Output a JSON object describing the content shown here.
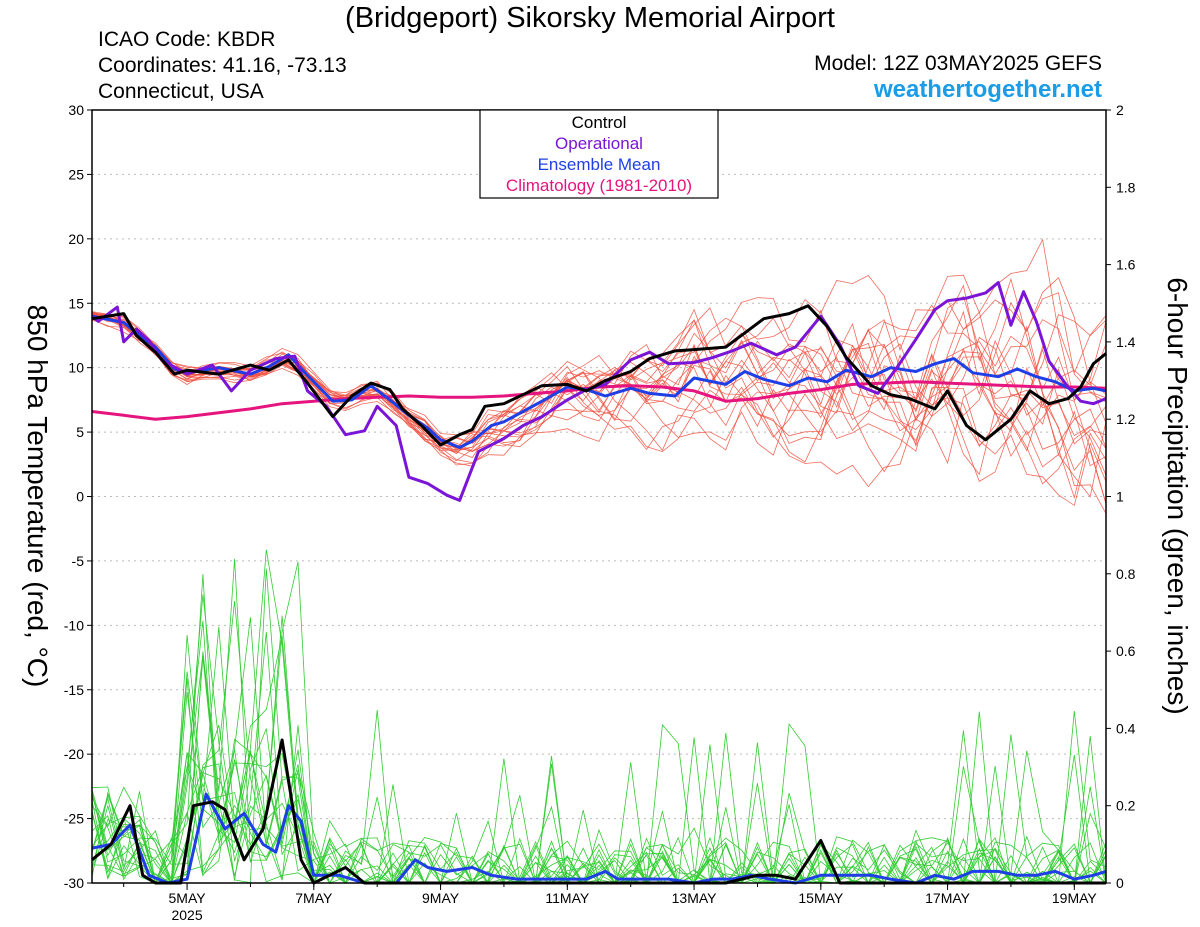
{
  "header": {
    "title": "(Bridgeport) Sikorsky Memorial Airport",
    "icao": "ICAO Code: KBDR",
    "coords": "Coordinates: 41.16, -73.13",
    "location": "Connecticut, USA",
    "model": "Model: 12Z 03MAY2025 GEFS",
    "site": "weathertogether.net"
  },
  "colors": {
    "control": "#000000",
    "operational": "#7a14d6",
    "ensemble_mean": "#1f3fe6",
    "climatology": "#e6147e",
    "temp_members": "#f05040",
    "precip_members": "#33cc33",
    "site": "#1a9ce6"
  },
  "chart_data": {
    "type": "line",
    "ylabel_left": "850 hPa Temperature (red, °C)",
    "ylabel_right": "6-hour Precipitation (green, inches)",
    "ylim_left": [
      -30,
      30
    ],
    "ylim_right": [
      0,
      2
    ],
    "yticks_left": [
      "30",
      "25",
      "20",
      "15",
      "10",
      "5",
      "0",
      "-5",
      "-10",
      "-15",
      "-20",
      "-25",
      "-30"
    ],
    "yticks_right": [
      "2",
      "1.8",
      "1.6",
      "1.4",
      "1.2",
      "1",
      "0.8",
      "0.6",
      "0.4",
      "0.2",
      "0"
    ],
    "x_range_days": [
      3.5,
      19.5
    ],
    "x_ticks": [
      {
        "day": 5,
        "label": "5MAY",
        "sub": "2025"
      },
      {
        "day": 7,
        "label": "7MAY"
      },
      {
        "day": 9,
        "label": "9MAY"
      },
      {
        "day": 11,
        "label": "11MAY"
      },
      {
        "day": 13,
        "label": "13MAY"
      },
      {
        "day": 15,
        "label": "15MAY"
      },
      {
        "day": 17,
        "label": "17MAY"
      },
      {
        "day": 19,
        "label": "19MAY"
      }
    ],
    "legend": {
      "placement": "top-center",
      "entries": [
        "Control",
        "Operational",
        "Ensemble Mean",
        "Climatology (1981-2010)"
      ]
    },
    "grid": true,
    "temperature": {
      "control": [
        [
          3.5,
          13.8
        ],
        [
          4.0,
          14.2
        ],
        [
          4.2,
          12.5
        ],
        [
          4.5,
          11.2
        ],
        [
          4.8,
          9.5
        ],
        [
          5.0,
          9.8
        ],
        [
          5.5,
          9.5
        ],
        [
          6.0,
          10.2
        ],
        [
          6.3,
          9.8
        ],
        [
          6.6,
          10.6
        ],
        [
          6.9,
          8.8
        ],
        [
          7.3,
          6.2
        ],
        [
          7.6,
          7.8
        ],
        [
          7.9,
          8.8
        ],
        [
          8.2,
          8.3
        ],
        [
          8.4,
          6.8
        ],
        [
          8.7,
          5.5
        ],
        [
          9.0,
          4.0
        ],
        [
          9.3,
          4.8
        ],
        [
          9.5,
          5.2
        ],
        [
          9.7,
          7.0
        ],
        [
          10.0,
          7.2
        ],
        [
          10.3,
          7.9
        ],
        [
          10.6,
          8.6
        ],
        [
          11.0,
          8.7
        ],
        [
          11.3,
          8.2
        ],
        [
          11.6,
          9.0
        ],
        [
          12.0,
          9.7
        ],
        [
          12.3,
          10.7
        ],
        [
          12.7,
          11.3
        ],
        [
          13.0,
          11.4
        ],
        [
          13.5,
          11.6
        ],
        [
          13.8,
          12.7
        ],
        [
          14.1,
          13.8
        ],
        [
          14.5,
          14.2
        ],
        [
          14.8,
          14.8
        ],
        [
          15.1,
          13.2
        ],
        [
          15.4,
          10.8
        ],
        [
          15.8,
          8.6
        ],
        [
          16.1,
          7.9
        ],
        [
          16.4,
          7.6
        ],
        [
          16.8,
          6.8
        ],
        [
          17.0,
          8.2
        ],
        [
          17.3,
          5.5
        ],
        [
          17.6,
          4.4
        ],
        [
          18.0,
          6.0
        ],
        [
          18.3,
          8.2
        ],
        [
          18.6,
          7.2
        ],
        [
          18.9,
          7.6
        ],
        [
          19.1,
          8.5
        ],
        [
          19.3,
          10.3
        ],
        [
          19.5,
          11.1
        ]
      ],
      "operational": [
        [
          3.5,
          14.0
        ],
        [
          3.6,
          13.6
        ],
        [
          3.9,
          14.7
        ],
        [
          4.0,
          12.0
        ],
        [
          4.2,
          13.0
        ],
        [
          4.4,
          12.1
        ],
        [
          4.6,
          10.6
        ],
        [
          5.0,
          9.5
        ],
        [
          5.4,
          10.2
        ],
        [
          5.7,
          8.2
        ],
        [
          6.0,
          9.8
        ],
        [
          6.4,
          10.7
        ],
        [
          6.7,
          10.9
        ],
        [
          6.9,
          8.2
        ],
        [
          7.2,
          7.0
        ],
        [
          7.5,
          4.8
        ],
        [
          7.8,
          5.1
        ],
        [
          8.0,
          7.0
        ],
        [
          8.3,
          5.5
        ],
        [
          8.5,
          1.5
        ],
        [
          8.8,
          1.0
        ],
        [
          9.1,
          0.1
        ],
        [
          9.3,
          -0.3
        ],
        [
          9.6,
          3.5
        ],
        [
          10.0,
          4.5
        ],
        [
          10.3,
          5.5
        ],
        [
          10.6,
          6.2
        ],
        [
          11.0,
          7.5
        ],
        [
          11.3,
          8.3
        ],
        [
          11.6,
          8.7
        ],
        [
          12.0,
          10.6
        ],
        [
          12.3,
          11.2
        ],
        [
          12.6,
          10.3
        ],
        [
          13.0,
          10.4
        ],
        [
          13.3,
          10.8
        ],
        [
          13.6,
          11.3
        ],
        [
          13.9,
          11.9
        ],
        [
          14.3,
          11.0
        ],
        [
          14.6,
          11.6
        ],
        [
          15.0,
          14.0
        ],
        [
          15.3,
          11.8
        ],
        [
          15.6,
          8.6
        ],
        [
          15.9,
          8.0
        ],
        [
          16.2,
          10.0
        ],
        [
          16.5,
          12.2
        ],
        [
          16.8,
          14.5
        ],
        [
          17.0,
          15.2
        ],
        [
          17.3,
          15.4
        ],
        [
          17.6,
          15.8
        ],
        [
          17.8,
          16.6
        ],
        [
          18.0,
          13.3
        ],
        [
          18.2,
          15.9
        ],
        [
          18.4,
          13.6
        ],
        [
          18.6,
          10.5
        ],
        [
          18.9,
          8.5
        ],
        [
          19.1,
          7.4
        ],
        [
          19.3,
          7.2
        ],
        [
          19.5,
          7.6
        ]
      ],
      "ensemble_mean": [
        [
          3.5,
          14.0
        ],
        [
          4.0,
          13.5
        ],
        [
          4.2,
          12.7
        ],
        [
          4.5,
          11.6
        ],
        [
          4.8,
          9.9
        ],
        [
          5.0,
          9.6
        ],
        [
          5.5,
          10.0
        ],
        [
          6.0,
          9.5
        ],
        [
          6.3,
          10.1
        ],
        [
          6.6,
          11.0
        ],
        [
          6.9,
          9.4
        ],
        [
          7.3,
          7.4
        ],
        [
          7.6,
          7.5
        ],
        [
          7.9,
          8.6
        ],
        [
          8.2,
          7.5
        ],
        [
          8.5,
          6.3
        ],
        [
          8.8,
          5.3
        ],
        [
          9.0,
          4.4
        ],
        [
          9.3,
          3.8
        ],
        [
          9.5,
          4.3
        ],
        [
          9.8,
          5.5
        ],
        [
          10.0,
          5.8
        ],
        [
          10.3,
          6.6
        ],
        [
          10.6,
          7.4
        ],
        [
          11.0,
          8.5
        ],
        [
          11.3,
          8.3
        ],
        [
          11.6,
          7.8
        ],
        [
          12.0,
          8.4
        ],
        [
          12.3,
          8.0
        ],
        [
          12.7,
          7.8
        ],
        [
          13.0,
          9.2
        ],
        [
          13.5,
          8.7
        ],
        [
          13.8,
          9.7
        ],
        [
          14.1,
          9.1
        ],
        [
          14.5,
          8.6
        ],
        [
          14.8,
          9.2
        ],
        [
          15.1,
          8.9
        ],
        [
          15.4,
          9.8
        ],
        [
          15.8,
          9.3
        ],
        [
          16.1,
          10.0
        ],
        [
          16.5,
          9.7
        ],
        [
          16.8,
          10.3
        ],
        [
          17.1,
          10.7
        ],
        [
          17.4,
          9.6
        ],
        [
          17.8,
          9.3
        ],
        [
          18.1,
          9.9
        ],
        [
          18.4,
          9.3
        ],
        [
          18.7,
          8.9
        ],
        [
          19.0,
          8.2
        ],
        [
          19.3,
          8.4
        ],
        [
          19.5,
          8.2
        ]
      ],
      "climatology": [
        [
          3.5,
          6.6
        ],
        [
          4.0,
          6.3
        ],
        [
          4.5,
          6.0
        ],
        [
          5.0,
          6.2
        ],
        [
          5.5,
          6.5
        ],
        [
          6.0,
          6.8
        ],
        [
          6.5,
          7.2
        ],
        [
          7.0,
          7.4
        ],
        [
          7.5,
          7.6
        ],
        [
          8.0,
          7.7
        ],
        [
          8.5,
          7.8
        ],
        [
          9.0,
          7.7
        ],
        [
          9.5,
          7.7
        ],
        [
          10.0,
          7.8
        ],
        [
          10.5,
          8.0
        ],
        [
          11.0,
          8.2
        ],
        [
          11.5,
          8.5
        ],
        [
          12.0,
          8.6
        ],
        [
          12.5,
          8.5
        ],
        [
          13.0,
          8.2
        ],
        [
          13.5,
          7.4
        ],
        [
          14.0,
          7.6
        ],
        [
          14.5,
          8.0
        ],
        [
          15.0,
          8.3
        ],
        [
          15.5,
          8.7
        ],
        [
          16.0,
          8.8
        ],
        [
          16.5,
          8.9
        ],
        [
          17.0,
          8.8
        ],
        [
          17.5,
          8.7
        ],
        [
          18.0,
          8.6
        ],
        [
          18.5,
          8.5
        ],
        [
          19.0,
          8.5
        ],
        [
          19.5,
          8.4
        ]
      ]
    },
    "precipitation": {
      "control": [
        [
          3.5,
          0.06
        ],
        [
          3.8,
          0.1
        ],
        [
          4.1,
          0.2
        ],
        [
          4.3,
          0.02
        ],
        [
          4.5,
          0.0
        ],
        [
          4.7,
          0.0
        ],
        [
          4.9,
          0.0
        ],
        [
          5.1,
          0.2
        ],
        [
          5.4,
          0.21
        ],
        [
          5.6,
          0.19
        ],
        [
          5.9,
          0.06
        ],
        [
          6.2,
          0.14
        ],
        [
          6.5,
          0.37
        ],
        [
          6.8,
          0.06
        ],
        [
          7.0,
          0.0
        ],
        [
          7.5,
          0.04
        ],
        [
          7.8,
          0.0
        ],
        [
          8.5,
          0.0
        ],
        [
          11.0,
          0.0
        ],
        [
          13.0,
          0.0
        ],
        [
          13.5,
          0.0
        ],
        [
          14.0,
          0.02
        ],
        [
          14.3,
          0.02
        ],
        [
          14.6,
          0.01
        ],
        [
          15.0,
          0.11
        ],
        [
          15.3,
          0.0
        ],
        [
          16.0,
          0.0
        ],
        [
          19.5,
          0.0
        ]
      ],
      "ensemble_mean": [
        [
          3.5,
          0.09
        ],
        [
          3.8,
          0.1
        ],
        [
          4.1,
          0.15
        ],
        [
          4.4,
          0.02
        ],
        [
          4.7,
          0.0
        ],
        [
          5.0,
          0.01
        ],
        [
          5.3,
          0.23
        ],
        [
          5.6,
          0.14
        ],
        [
          5.9,
          0.18
        ],
        [
          6.2,
          0.1
        ],
        [
          6.4,
          0.08
        ],
        [
          6.6,
          0.2
        ],
        [
          6.8,
          0.16
        ],
        [
          7.0,
          0.02
        ],
        [
          7.4,
          0.02
        ],
        [
          7.8,
          0.0
        ],
        [
          8.3,
          0.0
        ],
        [
          8.6,
          0.06
        ],
        [
          8.8,
          0.04
        ],
        [
          9.1,
          0.03
        ],
        [
          9.5,
          0.04
        ],
        [
          9.8,
          0.02
        ],
        [
          10.2,
          0.01
        ],
        [
          10.6,
          0.01
        ],
        [
          10.9,
          0.01
        ],
        [
          11.3,
          0.01
        ],
        [
          11.6,
          0.03
        ],
        [
          11.8,
          0.01
        ],
        [
          12.2,
          0.01
        ],
        [
          12.6,
          0.01
        ],
        [
          13.0,
          0.0
        ],
        [
          13.3,
          0.01
        ],
        [
          13.6,
          0.01
        ],
        [
          13.9,
          0.02
        ],
        [
          14.2,
          0.01
        ],
        [
          14.6,
          0.0
        ],
        [
          15.0,
          0.02
        ],
        [
          15.4,
          0.02
        ],
        [
          15.8,
          0.02
        ],
        [
          16.1,
          0.01
        ],
        [
          16.5,
          0.0
        ],
        [
          16.8,
          0.02
        ],
        [
          17.1,
          0.01
        ],
        [
          17.4,
          0.03
        ],
        [
          17.8,
          0.03
        ],
        [
          18.1,
          0.02
        ],
        [
          18.4,
          0.02
        ],
        [
          18.7,
          0.03
        ],
        [
          19.0,
          0.01
        ],
        [
          19.3,
          0.02
        ],
        [
          19.5,
          0.03
        ]
      ]
    }
  }
}
